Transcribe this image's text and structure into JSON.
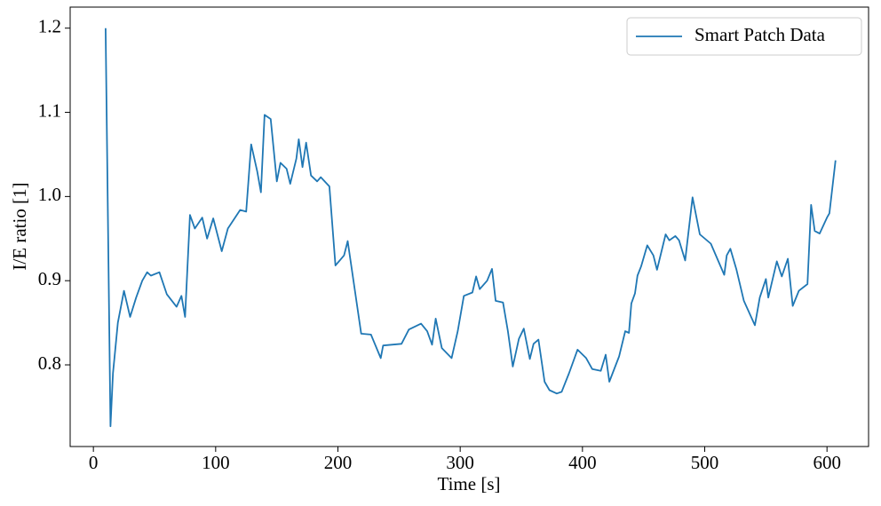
{
  "chart_data": {
    "type": "line",
    "xlabel": "Time [s]",
    "ylabel": "I/E ratio [1]",
    "x": [
      10,
      14,
      16,
      20,
      25,
      30,
      35,
      40,
      44,
      47,
      54,
      60,
      68,
      72,
      75,
      79,
      83,
      89,
      93,
      98,
      105,
      110,
      120,
      125,
      129,
      134,
      137,
      140,
      145,
      150,
      153,
      158,
      161,
      166,
      168,
      171,
      174,
      178,
      183,
      186,
      193,
      198,
      205,
      208,
      219,
      227,
      235,
      237,
      252,
      258,
      268,
      273,
      277,
      280,
      285,
      293,
      298,
      303,
      310,
      313,
      316,
      322,
      326,
      329,
      335,
      339,
      343,
      348,
      352,
      357,
      360,
      364,
      369,
      373,
      379,
      383,
      389,
      396,
      403,
      408,
      415,
      419,
      422,
      430,
      435,
      438,
      440,
      443,
      445,
      448,
      453,
      458,
      461,
      468,
      471,
      476,
      479,
      484,
      490,
      496,
      505,
      516,
      518,
      521,
      526,
      532,
      541,
      545,
      550,
      552,
      559,
      563,
      568,
      572,
      577,
      584,
      587,
      590,
      594,
      600,
      602,
      607
    ],
    "series": [
      {
        "name": "Smart Patch Data",
        "color": "#1f77b4",
        "values": [
          1.2,
          0.727,
          0.79,
          0.85,
          0.888,
          0.857,
          0.88,
          0.9,
          0.91,
          0.906,
          0.91,
          0.884,
          0.869,
          0.882,
          0.857,
          0.978,
          0.962,
          0.975,
          0.95,
          0.974,
          0.935,
          0.962,
          0.984,
          0.982,
          1.062,
          1.03,
          1.005,
          1.097,
          1.092,
          1.018,
          1.04,
          1.033,
          1.015,
          1.045,
          1.068,
          1.035,
          1.064,
          1.025,
          1.018,
          1.023,
          1.012,
          0.918,
          0.93,
          0.947,
          0.837,
          0.836,
          0.808,
          0.823,
          0.825,
          0.842,
          0.849,
          0.84,
          0.824,
          0.855,
          0.82,
          0.808,
          0.84,
          0.882,
          0.886,
          0.905,
          0.89,
          0.9,
          0.914,
          0.876,
          0.874,
          0.84,
          0.798,
          0.831,
          0.843,
          0.807,
          0.825,
          0.83,
          0.78,
          0.77,
          0.766,
          0.768,
          0.79,
          0.818,
          0.808,
          0.795,
          0.793,
          0.812,
          0.78,
          0.81,
          0.84,
          0.838,
          0.873,
          0.885,
          0.906,
          0.917,
          0.942,
          0.93,
          0.913,
          0.955,
          0.948,
          0.953,
          0.948,
          0.924,
          0.999,
          0.955,
          0.944,
          0.907,
          0.93,
          0.938,
          0.913,
          0.876,
          0.847,
          0.88,
          0.902,
          0.88,
          0.923,
          0.905,
          0.926,
          0.87,
          0.888,
          0.896,
          0.99,
          0.959,
          0.956,
          0.975,
          0.98,
          1.043
        ]
      }
    ],
    "xlim": [
      -19,
      634
    ],
    "ylim": [
      0.703,
      1.225
    ],
    "xticks": [
      0,
      100,
      200,
      300,
      400,
      500,
      600
    ],
    "yticks": [
      0.8,
      0.9,
      {
        "value": 1.0,
        "label": "1.0"
      },
      1.1,
      1.2
    ],
    "legend": "upper right"
  }
}
